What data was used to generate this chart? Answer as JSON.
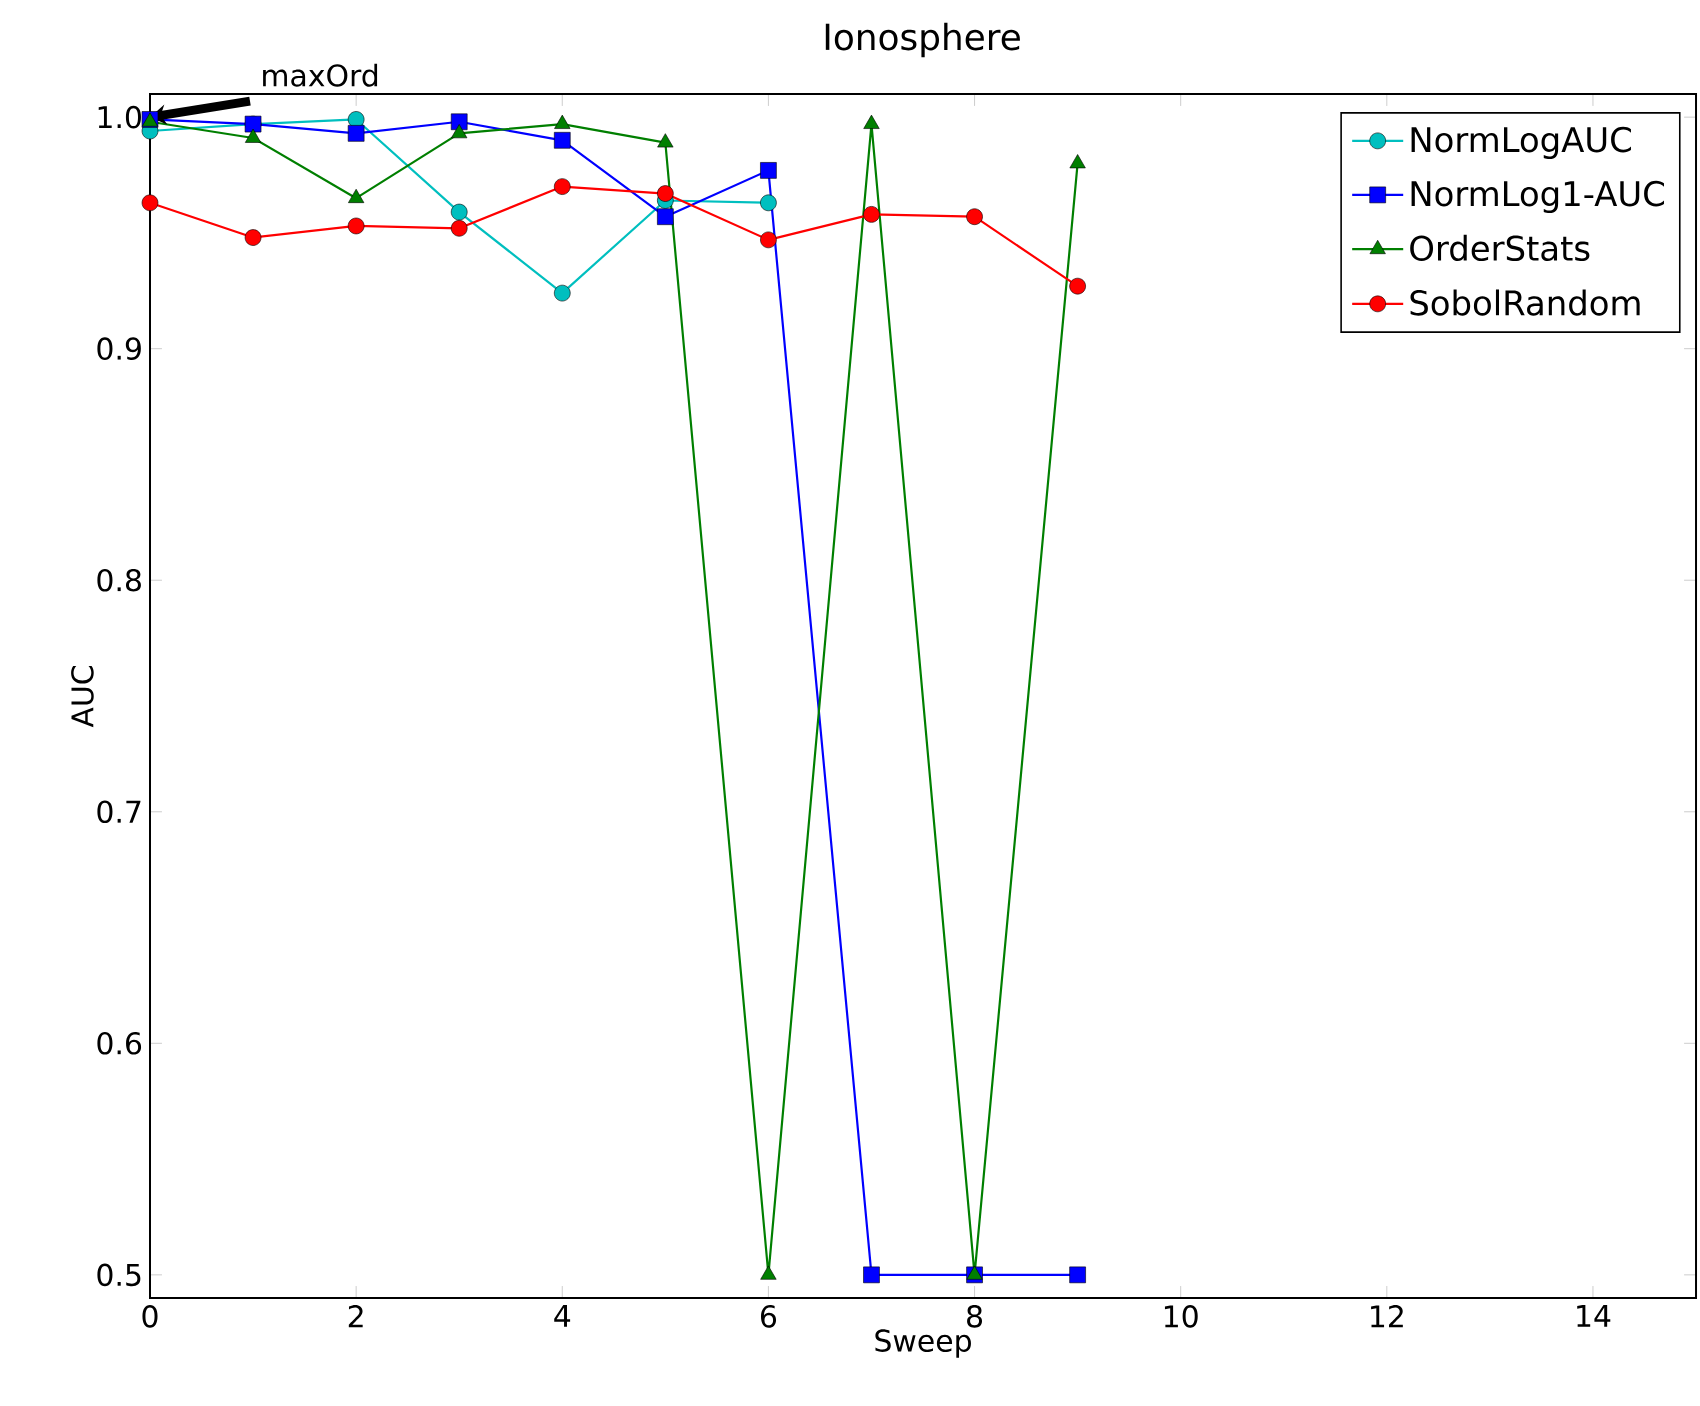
{
  "chart_data": {
    "type": "line",
    "title": "Ionosphere",
    "xlabel": "Sweep",
    "ylabel": "AUC",
    "x": [
      0,
      1,
      2,
      3,
      4,
      5,
      6,
      7,
      8,
      9
    ],
    "series": [
      {
        "name": "NormLogAUC",
        "color": "#00bfbf",
        "marker": "circle",
        "values": [
          0.994,
          0.997,
          0.999,
          0.959,
          0.924,
          0.964,
          0.963,
          null,
          null,
          null
        ]
      },
      {
        "name": "NormLog1-AUC",
        "color": "#0000ff",
        "marker": "square",
        "values": [
          0.999,
          0.997,
          0.993,
          0.998,
          0.99,
          0.957,
          0.977,
          0.5,
          0.5,
          0.5
        ]
      },
      {
        "name": "OrderStats",
        "color": "#007f00",
        "marker": "triangle",
        "values": [
          0.998,
          0.991,
          0.965,
          0.993,
          0.997,
          0.989,
          0.5,
          0.997,
          0.5,
          0.98
        ]
      },
      {
        "name": "SobolRandom",
        "color": "#ff0000",
        "marker": "circle",
        "values": [
          0.963,
          0.948,
          0.953,
          0.952,
          0.97,
          0.967,
          0.947,
          0.958,
          0.957,
          0.927
        ]
      }
    ],
    "xlim": [
      0,
      15
    ],
    "ylim": [
      0.49,
      1.01
    ],
    "xticks": [
      0,
      2,
      4,
      6,
      8,
      10,
      12,
      14
    ],
    "yticks": [
      0.5,
      0.6,
      0.7,
      0.8,
      0.9,
      {
        "value": 1,
        "label": "1.0"
      }
    ],
    "annotations": [
      {
        "text": "maxOrd",
        "x": 0,
        "y": 1.0
      }
    ],
    "legend": "top right",
    "grid": false,
    "line_style": "solid"
  }
}
